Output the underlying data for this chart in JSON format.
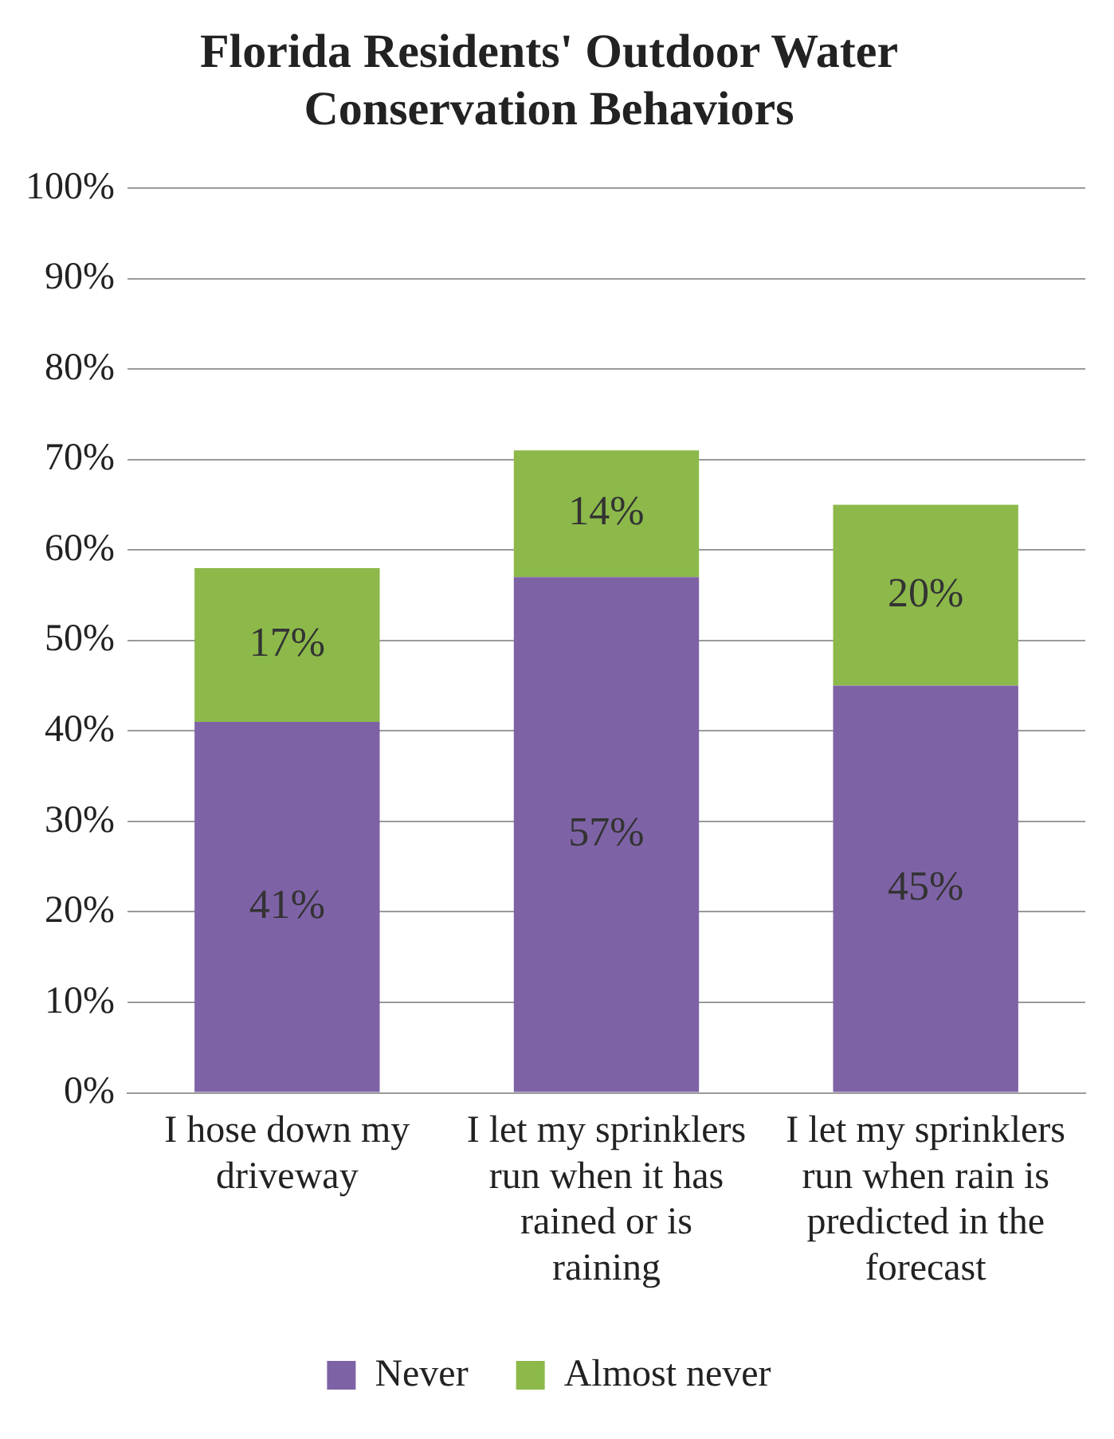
{
  "chart_data": {
    "type": "bar",
    "title": "Florida Residents' Outdoor Water Conservation Behaviors",
    "categories": [
      "I hose down my driveway",
      "I let my sprinklers run when it has rained or is raining",
      "I let my sprinklers run when rain is predicted in the forecast"
    ],
    "series": [
      {
        "name": "Never",
        "color": "#7e62a6",
        "values": [
          41,
          57,
          45
        ],
        "value_labels": [
          "41%",
          "57%",
          "45%"
        ]
      },
      {
        "name": "Almost never",
        "color": "#8cb94a",
        "values": [
          17,
          14,
          20
        ],
        "value_labels": [
          "17%",
          "14%",
          "20%"
        ]
      }
    ],
    "stacked": true,
    "ylim": [
      0,
      100
    ],
    "yticks": [
      {
        "value": 0,
        "label": "0%"
      },
      {
        "value": 10,
        "label": "10%"
      },
      {
        "value": 20,
        "label": "20%"
      },
      {
        "value": 30,
        "label": "30%"
      },
      {
        "value": 40,
        "label": "40%"
      },
      {
        "value": 50,
        "label": "50%"
      },
      {
        "value": 60,
        "label": "60%"
      },
      {
        "value": 70,
        "label": "70%"
      },
      {
        "value": 80,
        "label": "80%"
      },
      {
        "value": 90,
        "label": "90%"
      },
      {
        "value": 100,
        "label": "100%"
      }
    ],
    "grid": "y",
    "legend": "bottom"
  }
}
